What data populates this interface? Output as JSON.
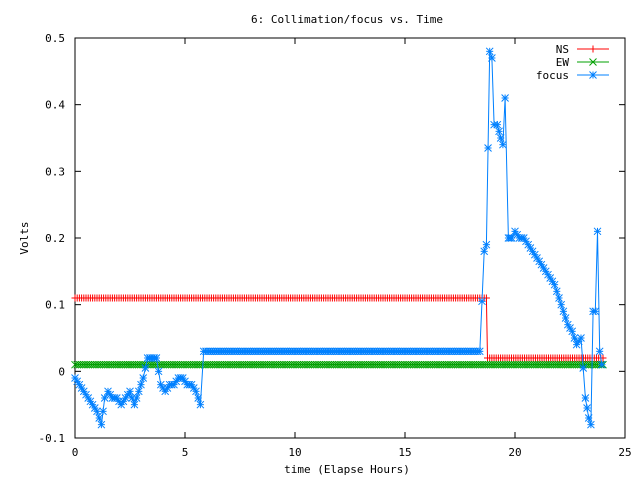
{
  "chart_data": {
    "type": "line",
    "title": "6: Collimation/focus vs. Time",
    "xlabel": "time (Elapse Hours)",
    "ylabel": "Volts",
    "xlim": [
      0,
      25
    ],
    "ylim": [
      -0.1,
      0.5
    ],
    "xticks": [
      "0",
      "5",
      "10",
      "15",
      "20",
      "25"
    ],
    "yticks": [
      "-0.1",
      "0",
      "0.1",
      "0.2",
      "0.3",
      "0.4",
      "0.5"
    ],
    "grid": false,
    "legend_position": "top-right",
    "series": [
      {
        "name": "NS",
        "color": "#ff0000",
        "marker": "plus",
        "points": [
          [
            0.0,
            0.11
          ],
          [
            18.5,
            0.11
          ],
          [
            18.6,
            0.11
          ],
          [
            18.7,
            0.11
          ],
          [
            18.75,
            0.02
          ],
          [
            24.0,
            0.02
          ]
        ]
      },
      {
        "name": "EW",
        "color": "#00a000",
        "marker": "cross",
        "points": [
          [
            0.0,
            0.01
          ],
          [
            24.0,
            0.01
          ]
        ]
      },
      {
        "name": "focus",
        "color": "#0080ff",
        "marker": "star",
        "points": [
          [
            0.0,
            -0.01
          ],
          [
            0.2,
            -0.02
          ],
          [
            0.4,
            -0.03
          ],
          [
            0.6,
            -0.04
          ],
          [
            0.8,
            -0.05
          ],
          [
            1.0,
            -0.06
          ],
          [
            1.2,
            -0.08
          ],
          [
            1.35,
            -0.04
          ],
          [
            1.5,
            -0.03
          ],
          [
            1.7,
            -0.04
          ],
          [
            1.9,
            -0.04
          ],
          [
            2.1,
            -0.05
          ],
          [
            2.3,
            -0.04
          ],
          [
            2.5,
            -0.03
          ],
          [
            2.7,
            -0.05
          ],
          [
            2.9,
            -0.03
          ],
          [
            3.1,
            -0.01
          ],
          [
            3.3,
            0.02
          ],
          [
            3.5,
            0.02
          ],
          [
            3.7,
            0.02
          ],
          [
            3.9,
            -0.02
          ],
          [
            4.1,
            -0.03
          ],
          [
            4.3,
            -0.02
          ],
          [
            4.5,
            -0.02
          ],
          [
            4.7,
            -0.01
          ],
          [
            4.9,
            -0.01
          ],
          [
            5.1,
            -0.02
          ],
          [
            5.3,
            -0.02
          ],
          [
            5.5,
            -0.03
          ],
          [
            5.7,
            -0.05
          ],
          [
            5.85,
            0.03
          ],
          [
            10.0,
            0.03
          ],
          [
            15.0,
            0.03
          ],
          [
            18.4,
            0.03
          ],
          [
            18.6,
            0.18
          ],
          [
            18.7,
            0.19
          ],
          [
            18.85,
            0.48
          ],
          [
            18.95,
            0.47
          ],
          [
            19.05,
            0.37
          ],
          [
            19.2,
            0.37
          ],
          [
            19.35,
            0.35
          ],
          [
            19.45,
            0.34
          ],
          [
            19.55,
            0.41
          ],
          [
            19.7,
            0.2
          ],
          [
            19.85,
            0.2
          ],
          [
            20.0,
            0.21
          ],
          [
            20.2,
            0.2
          ],
          [
            20.4,
            0.2
          ],
          [
            20.6,
            0.19
          ],
          [
            20.8,
            0.18
          ],
          [
            21.0,
            0.17
          ],
          [
            21.2,
            0.16
          ],
          [
            21.4,
            0.15
          ],
          [
            21.6,
            0.14
          ],
          [
            21.8,
            0.13
          ],
          [
            22.0,
            0.11
          ],
          [
            22.2,
            0.09
          ],
          [
            22.4,
            0.07
          ],
          [
            22.6,
            0.06
          ],
          [
            22.8,
            0.04
          ],
          [
            23.0,
            0.05
          ],
          [
            23.2,
            -0.04
          ],
          [
            23.35,
            -0.07
          ],
          [
            23.45,
            -0.08
          ],
          [
            23.55,
            0.09
          ],
          [
            23.65,
            0.09
          ],
          [
            23.75,
            0.21
          ],
          [
            23.85,
            0.03
          ],
          [
            23.95,
            0.01
          ]
        ]
      }
    ]
  }
}
